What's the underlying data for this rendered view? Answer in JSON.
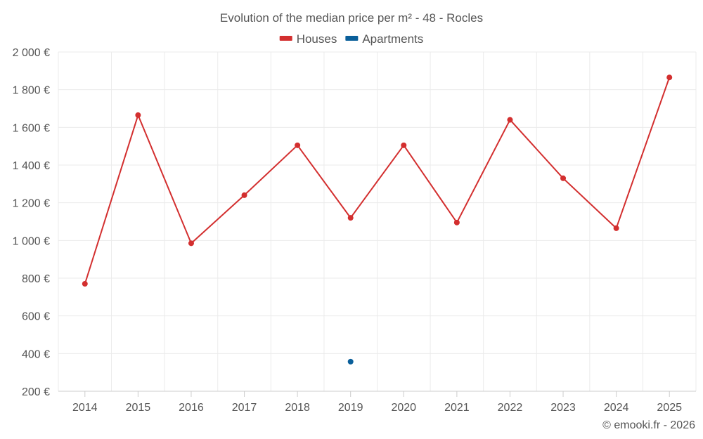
{
  "chart_data": {
    "type": "line",
    "title": "Evolution of the median price per m² - 48 - Rocles",
    "categories": [
      "2014",
      "2015",
      "2016",
      "2017",
      "2018",
      "2019",
      "2020",
      "2021",
      "2022",
      "2023",
      "2024",
      "2025"
    ],
    "series": [
      {
        "name": "Houses",
        "color": "#d32f2f",
        "values": [
          770,
          1665,
          985,
          1240,
          1505,
          1120,
          1505,
          1095,
          1640,
          1330,
          1065,
          1865
        ]
      },
      {
        "name": "Apartments",
        "color": "#0a5f9a",
        "values": [
          null,
          null,
          null,
          null,
          null,
          357,
          null,
          null,
          null,
          null,
          null,
          null
        ]
      }
    ],
    "ylim": [
      200,
      2000
    ],
    "yticks": [
      200,
      400,
      600,
      800,
      1000,
      1200,
      1400,
      1600,
      1800,
      2000
    ],
    "ytick_labels": [
      "200 €",
      "400 €",
      "600 €",
      "800 €",
      "1 000 €",
      "1 200 €",
      "1 400 €",
      "1 600 €",
      "1 800 €",
      "2 000 €"
    ],
    "legend_position": "top-center",
    "grid": true
  },
  "credit": "© emooki.fr - 2026"
}
